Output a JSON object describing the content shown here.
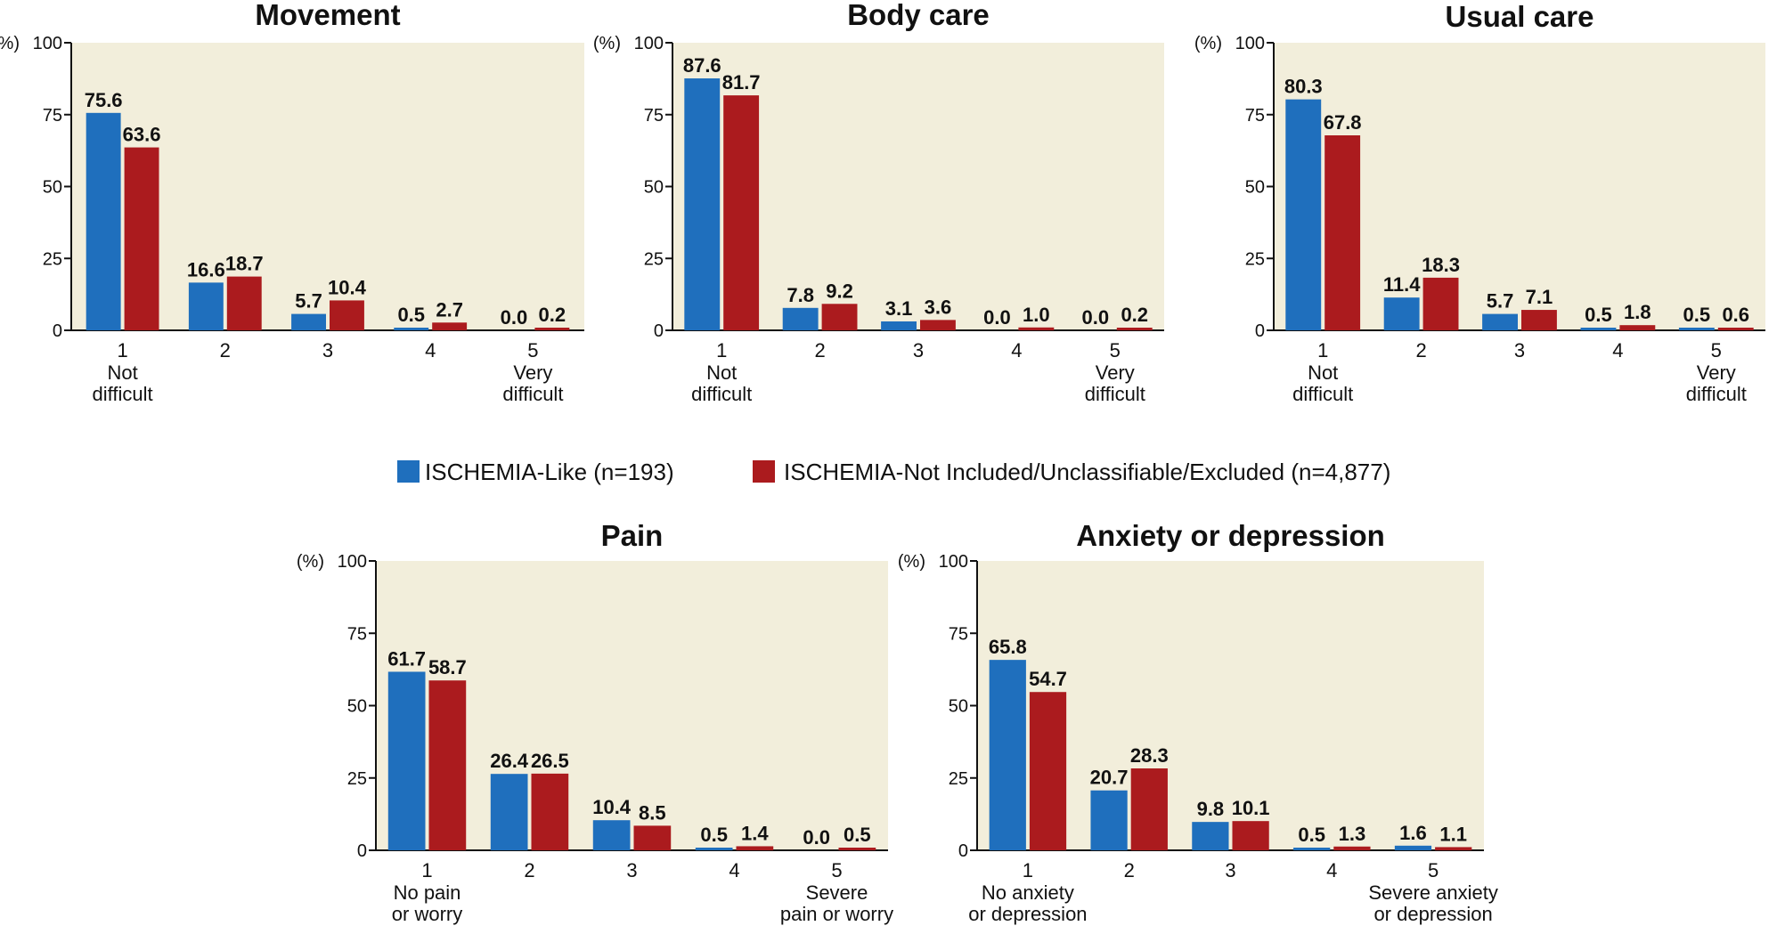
{
  "colors": {
    "series_1": "#1f6fbd",
    "series_2": "#ab1b1e",
    "plot_background": "#f2eedb"
  },
  "legend": {
    "items": [
      "ISCHEMIA-Like (n=193)",
      "ISCHEMIA-Not Included/Unclassifiable/Excluded (n=4,877)"
    ]
  },
  "chart_data": [
    {
      "type": "bar",
      "title": "Movement",
      "ylabel": "(%)",
      "ylim": [
        0,
        100
      ],
      "yticks": [
        0,
        25,
        50,
        75,
        100
      ],
      "grid": false,
      "categories": [
        "1",
        "2",
        "3",
        "4",
        "5"
      ],
      "category_sublabels": [
        [
          "Not",
          "difficult"
        ],
        [],
        [],
        [],
        [
          "Very",
          "difficult"
        ]
      ],
      "series": [
        {
          "name": "ISCHEMIA-Like (n=193)",
          "values": [
            75.6,
            16.6,
            5.7,
            0.5,
            0.0
          ],
          "labels": [
            "75.6",
            "16.6",
            "5.7",
            "0.5",
            "0.0"
          ]
        },
        {
          "name": "ISCHEMIA-Not Included/Unclassifiable/Excluded (n=4,877)",
          "values": [
            63.6,
            18.7,
            10.4,
            2.7,
            0.2
          ],
          "labels": [
            "63.6",
            "18.7",
            "10.4",
            "2.7",
            "0.2"
          ]
        }
      ]
    },
    {
      "type": "bar",
      "title": "Body care",
      "ylabel": "(%)",
      "ylim": [
        0,
        100
      ],
      "yticks": [
        0,
        25,
        50,
        75,
        100
      ],
      "grid": false,
      "categories": [
        "1",
        "2",
        "3",
        "4",
        "5"
      ],
      "category_sublabels": [
        [
          "Not",
          "difficult"
        ],
        [],
        [],
        [],
        [
          "Very",
          "difficult"
        ]
      ],
      "series": [
        {
          "name": "ISCHEMIA-Like (n=193)",
          "values": [
            87.6,
            7.8,
            3.1,
            0.0,
            0.0
          ],
          "labels": [
            "87.6",
            "7.8",
            "3.1",
            "0.0",
            "0.0"
          ]
        },
        {
          "name": "ISCHEMIA-Not Included/Unclassifiable/Excluded (n=4,877)",
          "values": [
            81.7,
            9.2,
            3.6,
            1.0,
            0.2
          ],
          "labels": [
            "81.7",
            "9.2",
            "3.6",
            "1.0",
            "0.2"
          ]
        }
      ]
    },
    {
      "type": "bar",
      "title": "Usual care",
      "ylabel": "(%)",
      "ylim": [
        0,
        100
      ],
      "yticks": [
        0,
        25,
        50,
        75,
        100
      ],
      "grid": false,
      "categories": [
        "1",
        "2",
        "3",
        "4",
        "5"
      ],
      "category_sublabels": [
        [
          "Not",
          "difficult"
        ],
        [],
        [],
        [],
        [
          "Very",
          "difficult"
        ]
      ],
      "series": [
        {
          "name": "ISCHEMIA-Like (n=193)",
          "values": [
            80.3,
            11.4,
            5.7,
            0.5,
            0.5
          ],
          "labels": [
            "80.3",
            "11.4",
            "5.7",
            "0.5",
            "0.5"
          ]
        },
        {
          "name": "ISCHEMIA-Not Included/Unclassifiable/Excluded (n=4,877)",
          "values": [
            67.8,
            18.3,
            7.1,
            1.8,
            0.6
          ],
          "labels": [
            "67.8",
            "18.3",
            "7.1",
            "1.8",
            "0.6"
          ]
        }
      ]
    },
    {
      "type": "bar",
      "title": "Pain",
      "ylabel": "(%)",
      "ylim": [
        0,
        100
      ],
      "yticks": [
        0,
        25,
        50,
        75,
        100
      ],
      "grid": false,
      "categories": [
        "1",
        "2",
        "3",
        "4",
        "5"
      ],
      "category_sublabels": [
        [
          "No pain",
          "or worry"
        ],
        [],
        [],
        [],
        [
          "Severe",
          "pain or worry"
        ]
      ],
      "series": [
        {
          "name": "ISCHEMIA-Like (n=193)",
          "values": [
            61.7,
            26.4,
            10.4,
            0.5,
            0.0
          ],
          "labels": [
            "61.7",
            "26.4",
            "10.4",
            "0.5",
            "0.0"
          ]
        },
        {
          "name": "ISCHEMIA-Not Included/Unclassifiable/Excluded (n=4,877)",
          "values": [
            58.7,
            26.5,
            8.5,
            1.4,
            0.5
          ],
          "labels": [
            "58.7",
            "26.5",
            "8.5",
            "1.4",
            "0.5"
          ]
        }
      ]
    },
    {
      "type": "bar",
      "title": "Anxiety or depression",
      "ylabel": "(%)",
      "ylim": [
        0,
        100
      ],
      "yticks": [
        0,
        25,
        50,
        75,
        100
      ],
      "grid": false,
      "categories": [
        "1",
        "2",
        "3",
        "4",
        "5"
      ],
      "category_sublabels": [
        [
          "No anxiety",
          "or depression"
        ],
        [],
        [],
        [],
        [
          "Severe anxiety",
          "or depression"
        ]
      ],
      "series": [
        {
          "name": "ISCHEMIA-Like (n=193)",
          "values": [
            65.8,
            20.7,
            9.8,
            0.5,
            1.6
          ],
          "labels": [
            "65.8",
            "20.7",
            "9.8",
            "0.5",
            "1.6"
          ]
        },
        {
          "name": "ISCHEMIA-Not Included/Unclassifiable/Excluded (n=4,877)",
          "values": [
            54.7,
            28.3,
            10.1,
            1.3,
            1.1
          ],
          "labels": [
            "54.7",
            "28.3",
            "10.1",
            "1.3",
            "1.1"
          ]
        }
      ]
    }
  ]
}
